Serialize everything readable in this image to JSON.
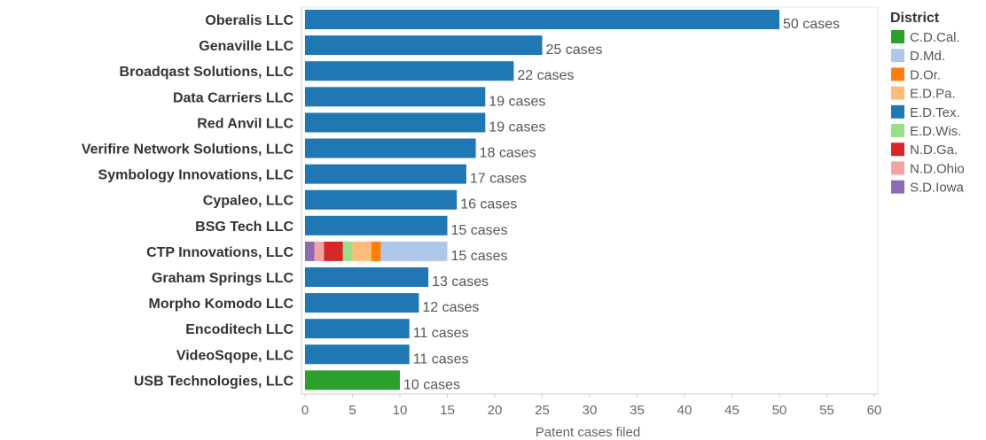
{
  "chart_data": {
    "type": "bar",
    "orientation": "horizontal",
    "stacked": true,
    "categories": [
      "Oberalis LLC",
      "Genaville LLC",
      "Broadqast Solutions, LLC",
      "Data Carriers LLC",
      "Red Anvil LLC",
      "Verifire Network Solutions, LLC",
      "Symbology Innovations, LLC",
      "Cypaleo, LLC",
      "BSG Tech LLC",
      "CTP Innovations, LLC",
      "Graham Springs LLC",
      "Morpho Komodo LLC",
      "Encoditech LLC",
      "VideoSqope, LLC",
      "USB Technologies, LLC"
    ],
    "value_labels": [
      "50 cases",
      "25 cases",
      "22 cases",
      "19 cases",
      "19 cases",
      "18 cases",
      "17 cases",
      "16 cases",
      "15 cases",
      "15 cases",
      "13 cases",
      "12 cases",
      "11 cases",
      "11 cases",
      "10 cases"
    ],
    "totals": [
      50,
      25,
      22,
      19,
      19,
      18,
      17,
      16,
      15,
      15,
      13,
      12,
      11,
      11,
      10
    ],
    "series": [
      {
        "name": "S.D.Iowa",
        "color": "#8c6bb1",
        "values": [
          0,
          0,
          0,
          0,
          0,
          0,
          0,
          0,
          0,
          1,
          0,
          0,
          0,
          0,
          0
        ]
      },
      {
        "name": "N.D.Ohio",
        "color": "#f4a3a3",
        "values": [
          0,
          0,
          0,
          0,
          0,
          0,
          0,
          0,
          0,
          1,
          0,
          0,
          0,
          0,
          0
        ]
      },
      {
        "name": "N.D.Ga.",
        "color": "#d62728",
        "values": [
          0,
          0,
          0,
          0,
          0,
          0,
          0,
          0,
          0,
          2,
          0,
          0,
          0,
          0,
          0
        ]
      },
      {
        "name": "E.D.Wis.",
        "color": "#98df8a",
        "values": [
          0,
          0,
          0,
          0,
          0,
          0,
          0,
          0,
          0,
          1,
          0,
          0,
          0,
          0,
          0
        ]
      },
      {
        "name": "E.D.Pa.",
        "color": "#ffbb78",
        "values": [
          0,
          0,
          0,
          0,
          0,
          0,
          0,
          0,
          0,
          2,
          0,
          0,
          0,
          0,
          0
        ]
      },
      {
        "name": "D.Or.",
        "color": "#ff7f0e",
        "values": [
          0,
          0,
          0,
          0,
          0,
          0,
          0,
          0,
          0,
          1,
          0,
          0,
          0,
          0,
          0
        ]
      },
      {
        "name": "D.Md.",
        "color": "#aec7e8",
        "values": [
          0,
          0,
          0,
          0,
          0,
          0,
          0,
          0,
          0,
          7,
          0,
          0,
          0,
          0,
          0
        ]
      },
      {
        "name": "E.D.Tex.",
        "color": "#1f77b4",
        "values": [
          50,
          25,
          22,
          19,
          19,
          18,
          17,
          16,
          15,
          0,
          13,
          12,
          11,
          11,
          0
        ]
      },
      {
        "name": "C.D.Cal.",
        "color": "#2ca02c",
        "values": [
          0,
          0,
          0,
          0,
          0,
          0,
          0,
          0,
          0,
          0,
          0,
          0,
          0,
          0,
          10
        ]
      }
    ],
    "xlabel": "Patent cases filed",
    "ylabel": "",
    "xlim": [
      0,
      60
    ],
    "xticks": [
      0,
      5,
      10,
      15,
      20,
      25,
      30,
      35,
      40,
      45,
      50,
      55,
      60
    ],
    "grid": false,
    "legend": {
      "title": "District",
      "position": "right",
      "entries": [
        {
          "name": "C.D.Cal.",
          "color": "#2ca02c"
        },
        {
          "name": "D.Md.",
          "color": "#aec7e8"
        },
        {
          "name": "D.Or.",
          "color": "#ff7f0e"
        },
        {
          "name": "E.D.Pa.",
          "color": "#ffbb78"
        },
        {
          "name": "E.D.Tex.",
          "color": "#1f77b4"
        },
        {
          "name": "E.D.Wis.",
          "color": "#98df8a"
        },
        {
          "name": "N.D.Ga.",
          "color": "#d62728"
        },
        {
          "name": "N.D.Ohio",
          "color": "#f4a3a3"
        },
        {
          "name": "S.D.Iowa",
          "color": "#8c6bb1"
        }
      ]
    }
  }
}
